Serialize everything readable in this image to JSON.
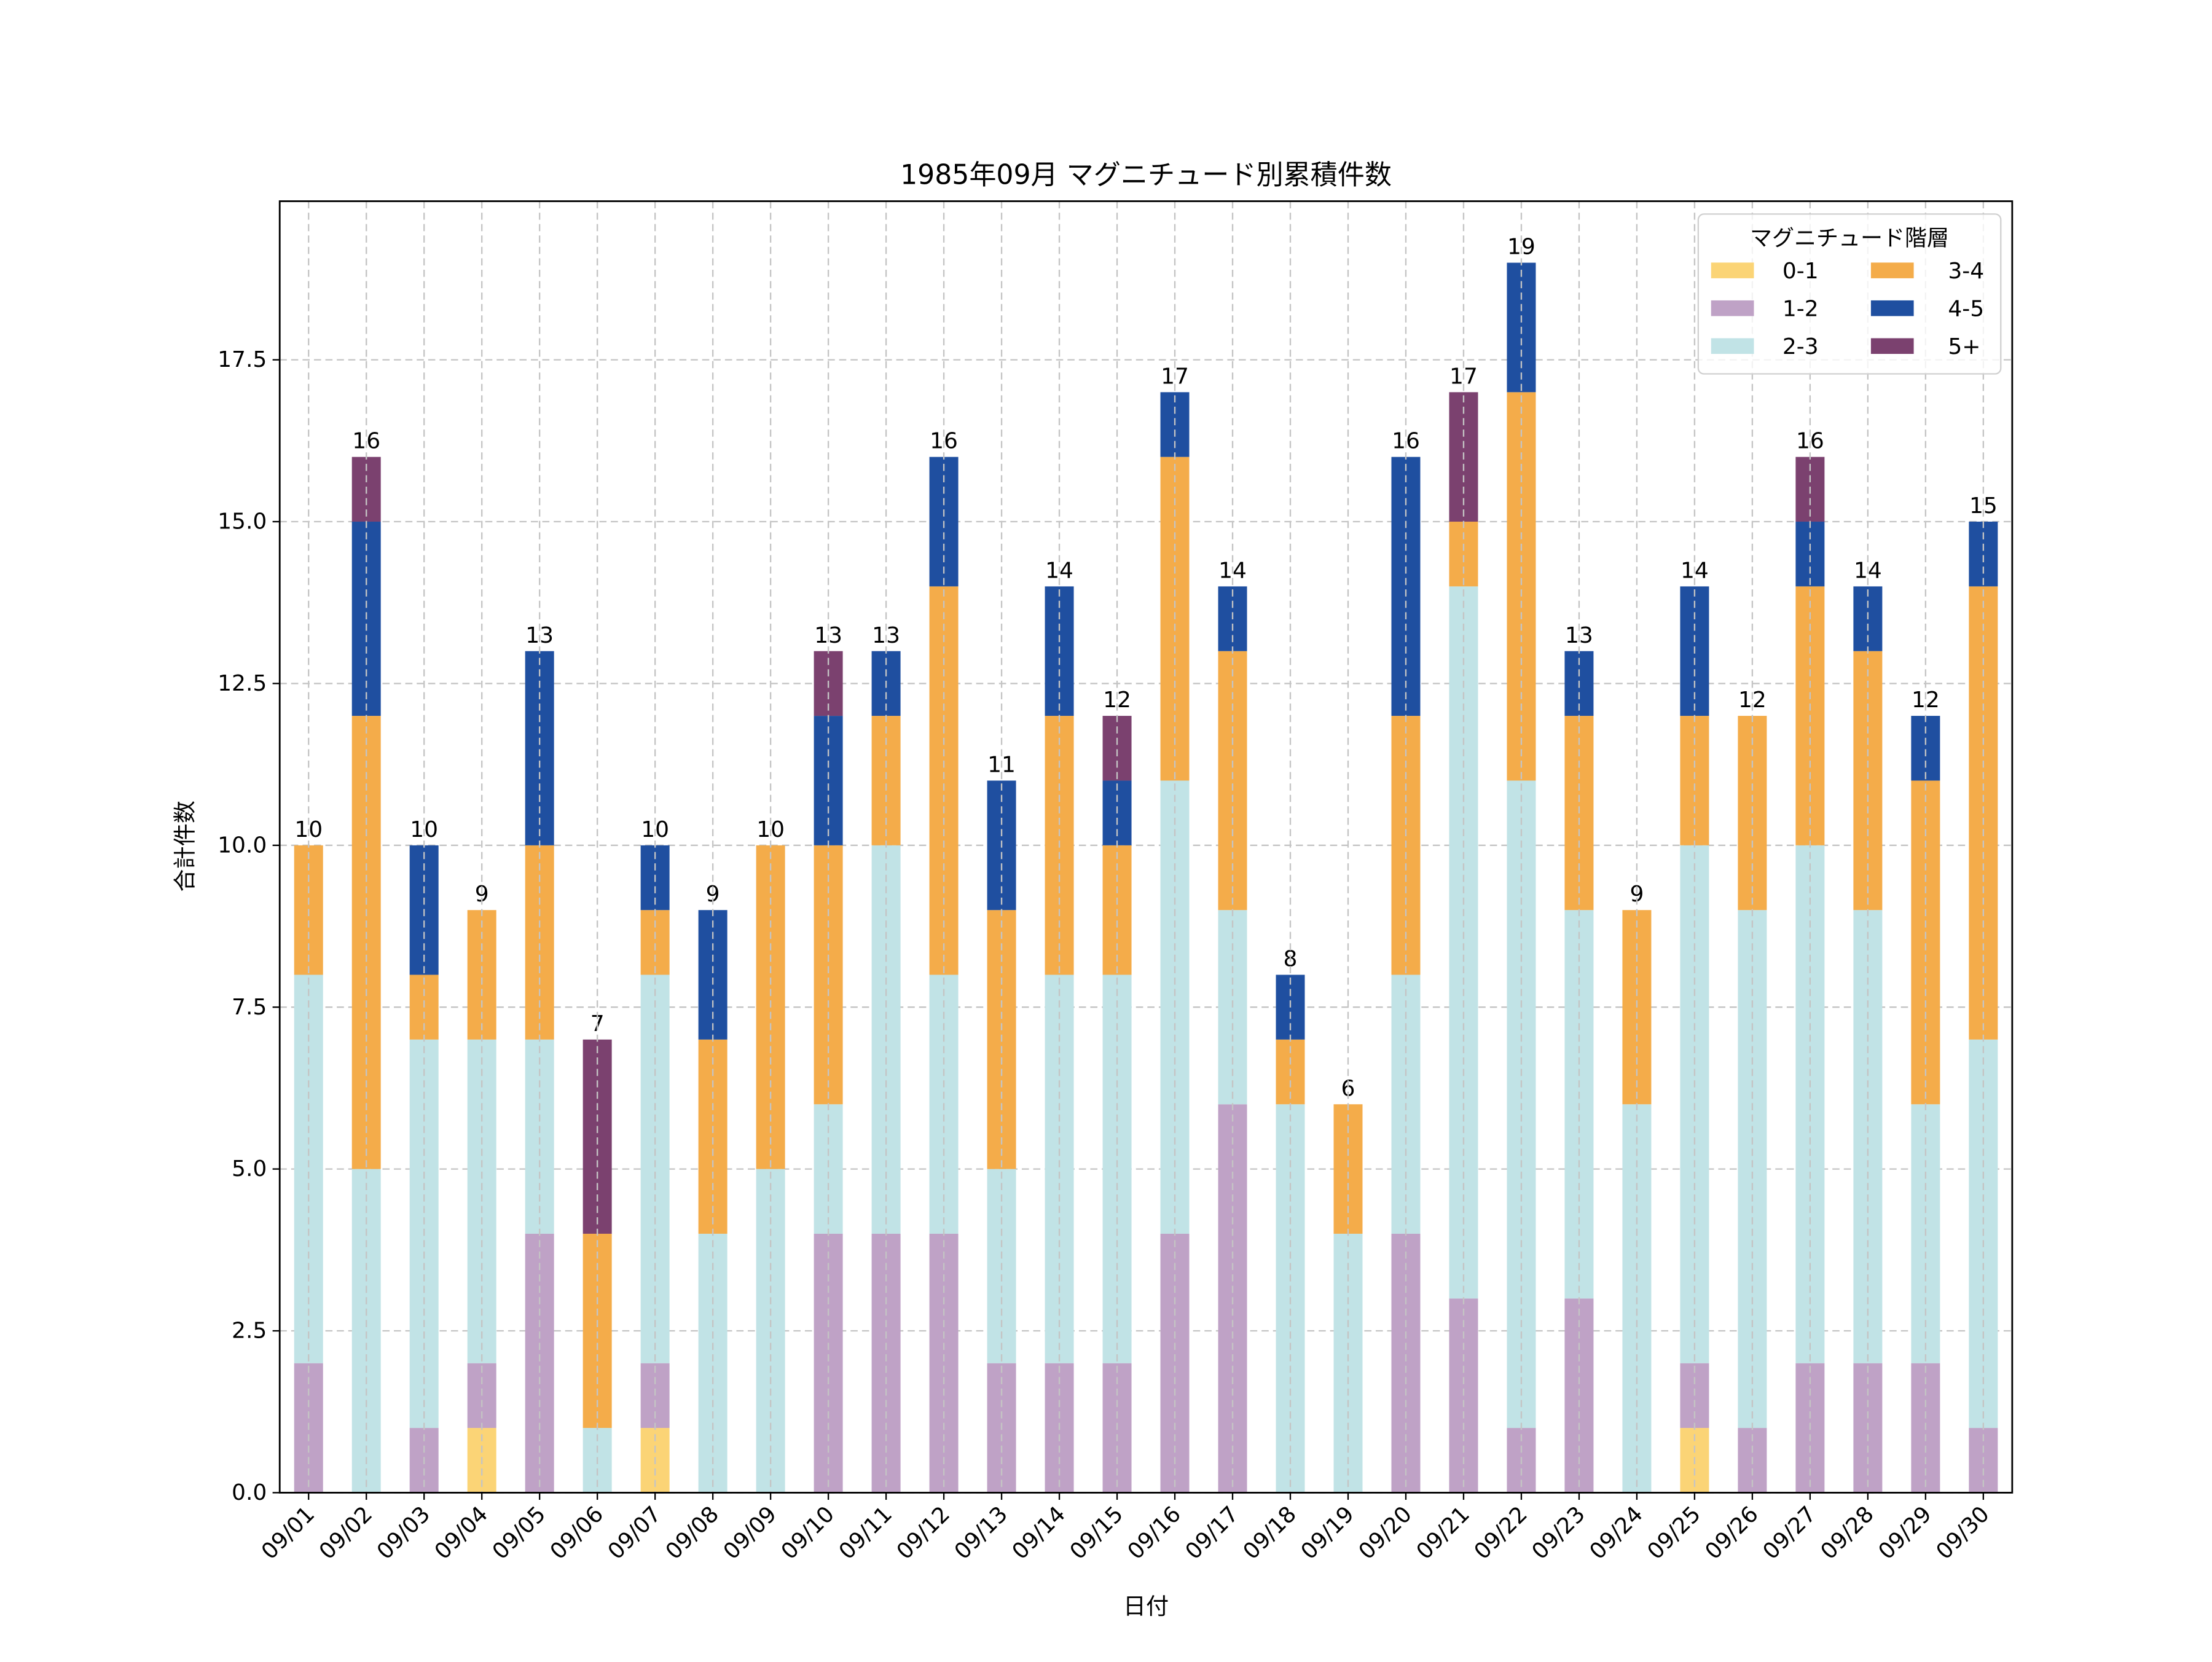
{
  "chart_data": {
    "type": "bar",
    "stacked": true,
    "title": "1985年09月 マグニチュード別累積件数",
    "xlabel": "日付",
    "ylabel": "合計件数",
    "ylim": [
      0,
      19.95
    ],
    "yticks": [
      0.0,
      2.5,
      5.0,
      7.5,
      10.0,
      12.5,
      15.0,
      17.5
    ],
    "ytick_labels": [
      "0.0",
      "2.5",
      "5.0",
      "7.5",
      "10.0",
      "12.5",
      "15.0",
      "17.5"
    ],
    "grid": true,
    "legend": {
      "title": "マグニチュード階層",
      "placement": "top-right",
      "columns": 2
    },
    "categories": [
      "09/01",
      "09/02",
      "09/03",
      "09/04",
      "09/05",
      "09/06",
      "09/07",
      "09/08",
      "09/09",
      "09/10",
      "09/11",
      "09/12",
      "09/13",
      "09/14",
      "09/15",
      "09/16",
      "09/17",
      "09/18",
      "09/19",
      "09/20",
      "09/21",
      "09/22",
      "09/23",
      "09/24",
      "09/25",
      "09/26",
      "09/27",
      "09/28",
      "09/29",
      "09/30"
    ],
    "series": [
      {
        "name": "0-1",
        "color": "#fbd476",
        "values": [
          0,
          0,
          0,
          1,
          0,
          0,
          1,
          0,
          0,
          0,
          0,
          0,
          0,
          0,
          0,
          0,
          0,
          0,
          0,
          0,
          0,
          0,
          0,
          0,
          1,
          0,
          0,
          0,
          0,
          0
        ]
      },
      {
        "name": "1-2",
        "color": "#bfa2c6",
        "values": [
          2,
          0,
          1,
          1,
          4,
          0,
          1,
          0,
          0,
          4,
          4,
          4,
          2,
          2,
          2,
          4,
          6,
          0,
          0,
          4,
          3,
          1,
          3,
          0,
          1,
          1,
          2,
          2,
          2,
          1
        ]
      },
      {
        "name": "2-3",
        "color": "#c1e3e6",
        "values": [
          6,
          5,
          6,
          5,
          3,
          1,
          6,
          4,
          5,
          2,
          6,
          4,
          3,
          6,
          6,
          7,
          3,
          6,
          4,
          4,
          11,
          10,
          6,
          6,
          8,
          8,
          8,
          7,
          4,
          6
        ]
      },
      {
        "name": "3-4",
        "color": "#f4ac4a",
        "values": [
          2,
          7,
          1,
          2,
          3,
          3,
          1,
          3,
          5,
          4,
          2,
          6,
          4,
          4,
          2,
          5,
          4,
          1,
          2,
          4,
          1,
          6,
          3,
          3,
          2,
          3,
          4,
          4,
          5,
          7
        ]
      },
      {
        "name": "4-5",
        "color": "#1f4fa0",
        "values": [
          0,
          3,
          2,
          0,
          3,
          0,
          1,
          2,
          0,
          2,
          1,
          2,
          2,
          2,
          1,
          1,
          1,
          1,
          0,
          4,
          0,
          2,
          1,
          0,
          2,
          0,
          1,
          1,
          1,
          1
        ]
      },
      {
        "name": "5+",
        "color": "#7b416f",
        "values": [
          0,
          1,
          0,
          0,
          0,
          3,
          0,
          0,
          0,
          1,
          0,
          0,
          0,
          0,
          1,
          0,
          0,
          0,
          0,
          0,
          2,
          0,
          0,
          0,
          0,
          0,
          1,
          0,
          0,
          0
        ]
      }
    ],
    "totals": [
      10,
      16,
      10,
      9,
      13,
      7,
      10,
      9,
      10,
      13,
      13,
      16,
      11,
      14,
      12,
      17,
      14,
      8,
      6,
      16,
      17,
      19,
      13,
      9,
      14,
      12,
      16,
      14,
      12,
      15
    ]
  }
}
